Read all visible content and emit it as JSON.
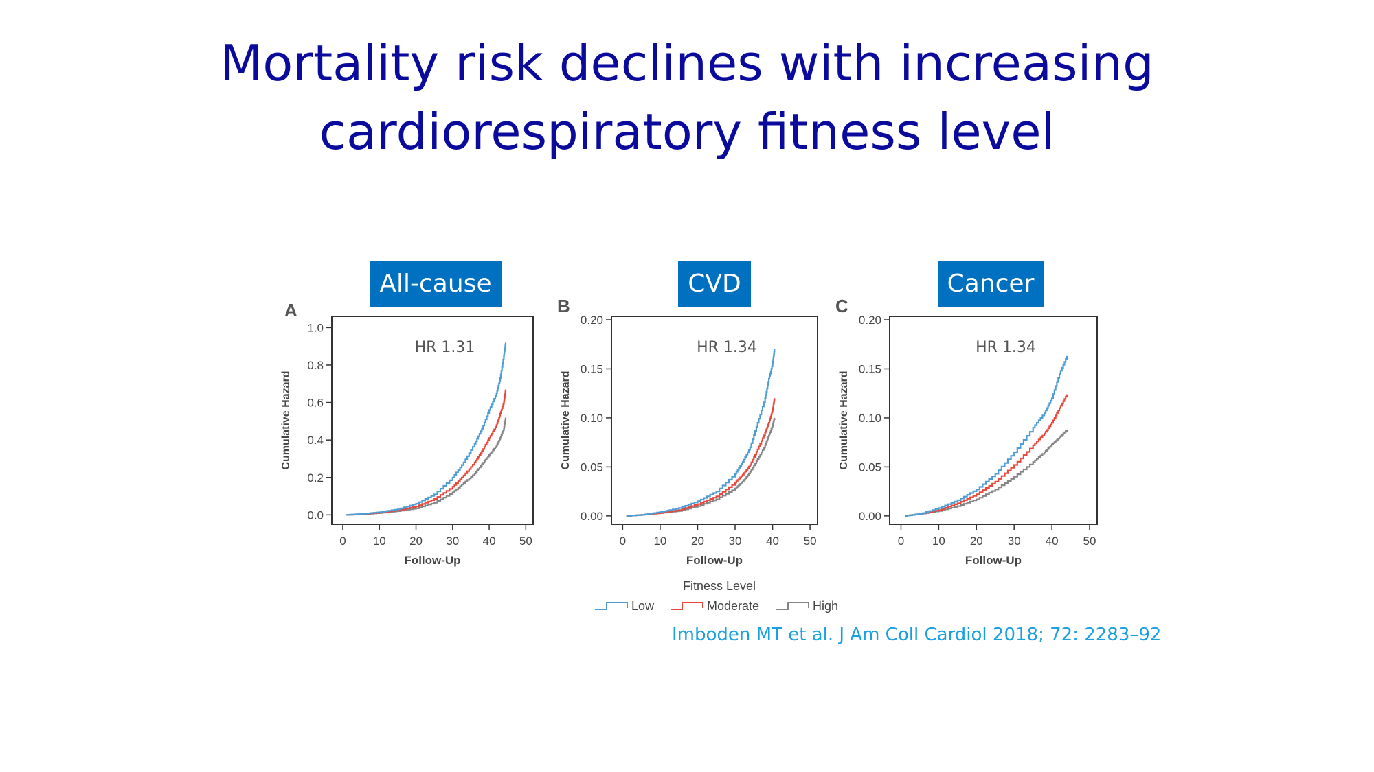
{
  "slide": {
    "title_line1": "Mortality risk declines with increasing",
    "title_line2": "cardiorespiratory fitness level",
    "citation": "Imboden MT et al. J Am Coll Cardiol 2018; 72: 2283–92"
  },
  "legend": {
    "title": "Fitness Level",
    "items": [
      {
        "label": "Low",
        "color": "#4d9cd3"
      },
      {
        "label": "Moderate",
        "color": "#e8473b"
      },
      {
        "label": "High",
        "color": "#858585"
      }
    ]
  },
  "chart_data": [
    {
      "type": "line",
      "panel": "A",
      "badge": "All-cause",
      "hr": "HR 1.31",
      "xlabel": "Follow-Up",
      "ylabel": "Cumulative Hazard",
      "xlim": [
        -3,
        52
      ],
      "ylim": [
        -0.05,
        1.06
      ],
      "xticks": [
        0,
        10,
        20,
        30,
        40,
        50
      ],
      "xtick_labels": [
        "0",
        "10",
        "20",
        "30",
        "40",
        "50"
      ],
      "yticks": [
        0,
        0.2,
        0.4,
        0.6,
        0.8,
        1.0
      ],
      "ytick_labels": [
        "0.0",
        "0.2",
        "0.4",
        "0.6",
        "0.8",
        "1.0"
      ],
      "series": [
        {
          "name": "Low",
          "x": [
            1,
            5,
            10,
            15,
            20,
            25,
            30,
            33,
            36,
            38,
            40,
            42,
            43,
            44,
            44.5
          ],
          "y": [
            0,
            0.005,
            0.015,
            0.03,
            0.06,
            0.11,
            0.2,
            0.28,
            0.38,
            0.46,
            0.56,
            0.65,
            0.73,
            0.85,
            0.92
          ]
        },
        {
          "name": "Moderate",
          "x": [
            1,
            5,
            10,
            15,
            20,
            25,
            30,
            33,
            36,
            38,
            40,
            42,
            43,
            44,
            44.5
          ],
          "y": [
            0,
            0.004,
            0.012,
            0.025,
            0.045,
            0.085,
            0.15,
            0.21,
            0.28,
            0.34,
            0.41,
            0.48,
            0.54,
            0.6,
            0.67
          ]
        },
        {
          "name": "High",
          "x": [
            1,
            5,
            10,
            15,
            20,
            25,
            30,
            33,
            36,
            38,
            40,
            42,
            43,
            44,
            44.5
          ],
          "y": [
            0,
            0.003,
            0.01,
            0.02,
            0.035,
            0.065,
            0.12,
            0.17,
            0.22,
            0.27,
            0.32,
            0.37,
            0.41,
            0.46,
            0.52
          ]
        }
      ]
    },
    {
      "type": "line",
      "panel": "B",
      "badge": "CVD",
      "hr": "HR 1.34",
      "xlabel": "Follow-Up",
      "ylabel": "Cumulative Hazard",
      "xlim": [
        -3,
        52
      ],
      "ylim": [
        -0.0085,
        0.2035
      ],
      "xticks": [
        0,
        10,
        20,
        30,
        40,
        50
      ],
      "xtick_labels": [
        "0",
        "10",
        "20",
        "30",
        "40",
        "50"
      ],
      "yticks": [
        0,
        0.05,
        0.1,
        0.15,
        0.2
      ],
      "ytick_labels": [
        "0.00",
        "0.05",
        "0.10",
        "0.15",
        "0.20"
      ],
      "series": [
        {
          "name": "Low",
          "x": [
            1,
            5,
            10,
            15,
            20,
            25,
            30,
            32,
            34,
            36,
            38,
            39,
            40,
            40.5
          ],
          "y": [
            0,
            0.001,
            0.004,
            0.008,
            0.015,
            0.025,
            0.043,
            0.055,
            0.07,
            0.095,
            0.12,
            0.14,
            0.155,
            0.17
          ]
        },
        {
          "name": "Moderate",
          "x": [
            1,
            5,
            10,
            15,
            20,
            25,
            30,
            32,
            34,
            36,
            38,
            39,
            40,
            40.5
          ],
          "y": [
            0,
            0.001,
            0.003,
            0.006,
            0.012,
            0.02,
            0.034,
            0.042,
            0.052,
            0.068,
            0.085,
            0.095,
            0.108,
            0.12
          ]
        },
        {
          "name": "High",
          "x": [
            1,
            5,
            10,
            15,
            20,
            25,
            30,
            32,
            34,
            36,
            38,
            39,
            40,
            40.5
          ],
          "y": [
            0,
            0.001,
            0.003,
            0.005,
            0.01,
            0.017,
            0.028,
            0.035,
            0.045,
            0.058,
            0.072,
            0.082,
            0.092,
            0.1
          ]
        }
      ]
    },
    {
      "type": "line",
      "panel": "C",
      "badge": "Cancer",
      "hr": "HR 1.34",
      "xlabel": "Follow-Up",
      "ylabel": "Cumulative Hazard",
      "xlim": [
        -3,
        52
      ],
      "ylim": [
        -0.0085,
        0.2035
      ],
      "xticks": [
        0,
        10,
        20,
        30,
        40,
        50
      ],
      "xtick_labels": [
        "0",
        "10",
        "20",
        "30",
        "40",
        "50"
      ],
      "yticks": [
        0,
        0.05,
        0.1,
        0.15,
        0.2
      ],
      "ytick_labels": [
        "0.00",
        "0.05",
        "0.10",
        "0.15",
        "0.20"
      ],
      "series": [
        {
          "name": "Low",
          "x": [
            1,
            5,
            10,
            15,
            20,
            25,
            30,
            35,
            38,
            40,
            42,
            44
          ],
          "y": [
            0,
            0.002,
            0.008,
            0.016,
            0.027,
            0.043,
            0.065,
            0.09,
            0.105,
            0.12,
            0.145,
            0.163
          ]
        },
        {
          "name": "Moderate",
          "x": [
            1,
            5,
            10,
            15,
            20,
            25,
            30,
            35,
            38,
            40,
            42,
            44
          ],
          "y": [
            0,
            0.002,
            0.006,
            0.013,
            0.022,
            0.035,
            0.052,
            0.072,
            0.084,
            0.095,
            0.11,
            0.124
          ]
        },
        {
          "name": "High",
          "x": [
            1,
            5,
            10,
            15,
            20,
            25,
            30,
            35,
            38,
            40,
            42,
            44
          ],
          "y": [
            0,
            0.002,
            0.005,
            0.01,
            0.017,
            0.027,
            0.04,
            0.055,
            0.065,
            0.073,
            0.08,
            0.088
          ]
        }
      ]
    }
  ]
}
